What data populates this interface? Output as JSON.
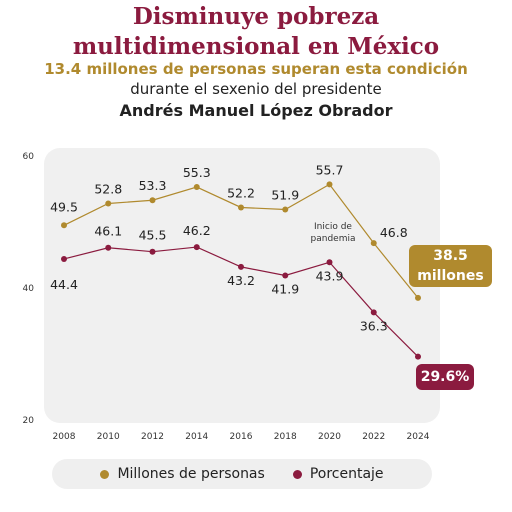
{
  "header": {
    "title_line1": "Disminuye pobreza",
    "title_line2": "multidimensional en México",
    "subtitle_line1": "13.4 millones de personas superan esta condición",
    "subtitle_line2": "durante el sexenio del presidente",
    "subtitle_line3": "Andrés Manuel López Obrador"
  },
  "chart_data": {
    "type": "line",
    "x": [
      "2008",
      "2010",
      "2012",
      "2014",
      "2016",
      "2018",
      "2020",
      "2022",
      "2024"
    ],
    "ylim": [
      20,
      60
    ],
    "yticks": [
      "60",
      "40",
      "20"
    ],
    "grid": false,
    "legend_position": "bottom",
    "series": [
      {
        "name": "Millones de personas",
        "color": "#b08a2e",
        "values": [
          49.5,
          52.8,
          53.3,
          55.3,
          52.2,
          51.9,
          55.7,
          46.8,
          38.5
        ],
        "labels": [
          "49.5",
          "52.8",
          "53.3",
          "55.3",
          "52.2",
          "51.9",
          "55.7",
          "46.8",
          ""
        ]
      },
      {
        "name": "Porcentaje",
        "color": "#8b1b3f",
        "values": [
          44.4,
          46.1,
          45.5,
          46.2,
          43.2,
          41.9,
          43.9,
          36.3,
          29.6
        ],
        "labels": [
          "44.4",
          "46.1",
          "45.5",
          "46.2",
          "43.2",
          "41.9",
          "43.9",
          "36.3",
          ""
        ]
      }
    ],
    "annotations": [
      {
        "text_line1": "Inicio de",
        "text_line2": "pandemia",
        "x": "2020"
      }
    ],
    "callouts": {
      "gold_line1": "38.5",
      "gold_line2": "millones",
      "maroon": "29.6%"
    }
  }
}
